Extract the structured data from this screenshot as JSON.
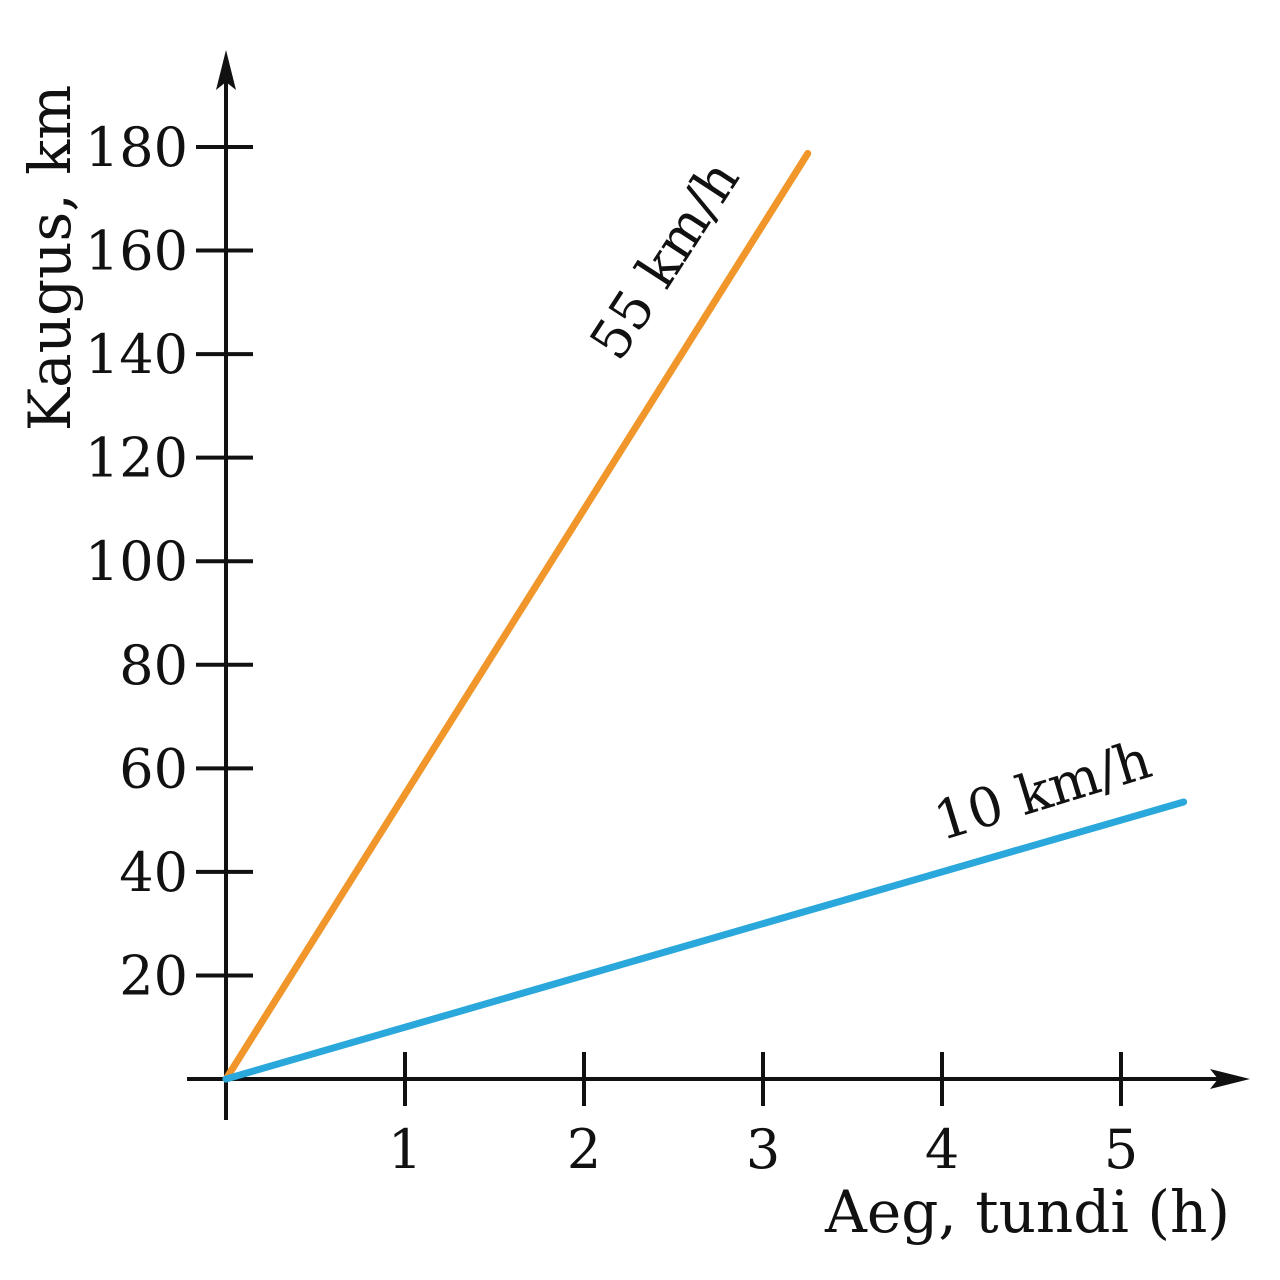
{
  "chart_data": {
    "type": "line",
    "title": "",
    "xlabel": "Aeg, tundi (h)",
    "ylabel": "Kaugus, km",
    "xlim": [
      0,
      5.4
    ],
    "ylim": [
      0,
      190
    ],
    "x_ticks": [
      1,
      2,
      3,
      4,
      5
    ],
    "x_tick_labels": [
      "1",
      "2",
      "3",
      "4",
      "5"
    ],
    "y_ticks": [
      20,
      40,
      60,
      80,
      100,
      120,
      140,
      160,
      180
    ],
    "y_tick_labels": [
      "20",
      "40",
      "60",
      "80",
      "100",
      "120",
      "140",
      "160",
      "180"
    ],
    "grid": false,
    "series": [
      {
        "name": "55 km/h",
        "color": "#F0962A",
        "x": [
          0,
          3.25
        ],
        "y": [
          0,
          178.75
        ]
      },
      {
        "name": "10 km/h",
        "color": "#2AA8DC",
        "x": [
          0,
          5.35
        ],
        "y": [
          0,
          53.5
        ]
      }
    ]
  }
}
